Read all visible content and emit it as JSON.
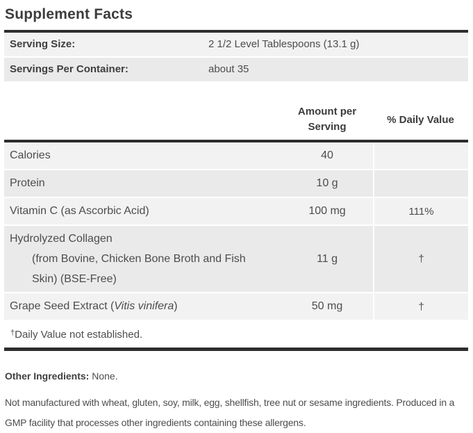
{
  "title": "Supplement Facts",
  "serving_info": [
    {
      "label": "Serving Size:",
      "value": "2 1/2 Level Tablespoons (13.1 g)"
    },
    {
      "label": "Servings Per Container:",
      "value": "about 35"
    }
  ],
  "table": {
    "header": {
      "amount_line1": "Amount per",
      "amount_line2": "Serving",
      "daily_value": "% Daily Value"
    },
    "rows": [
      {
        "name": "Calories",
        "amount": "40",
        "daily_value": ""
      },
      {
        "name": "Protein",
        "amount": "10 g",
        "daily_value": ""
      },
      {
        "name": "Vitamin C (as Ascorbic Acid)",
        "amount": "100 mg",
        "daily_value": "111%"
      },
      {
        "name": "Hydrolyzed Collagen",
        "name_detail": "(from Bovine, Chicken Bone Broth and Fish Skin) (BSE-Free)",
        "amount": "11 g",
        "daily_value": "†"
      },
      {
        "name_prefix": "Grape Seed Extract (",
        "name_italic": "Vitis vinifera",
        "name_suffix": ")",
        "amount": "50 mg",
        "daily_value": "†"
      }
    ],
    "footnote_symbol": "†",
    "footnote_text": "Daily Value not established."
  },
  "other_ingredients": {
    "label": "Other Ingredients:",
    "value": "None."
  },
  "allergen_statement": "Not manufactured with wheat, gluten, soy, milk, egg, shellfish, tree nut or sesame ingredients. Produced in a GMP facility that processes other ingredients containing these allergens.",
  "colors": {
    "divider_bar": "#2d2d2d",
    "row_light": "#f2f2f2",
    "row_dark": "#eaeaea",
    "body_text": "#4d4d4d",
    "heading_text": "#3c3c3c"
  }
}
